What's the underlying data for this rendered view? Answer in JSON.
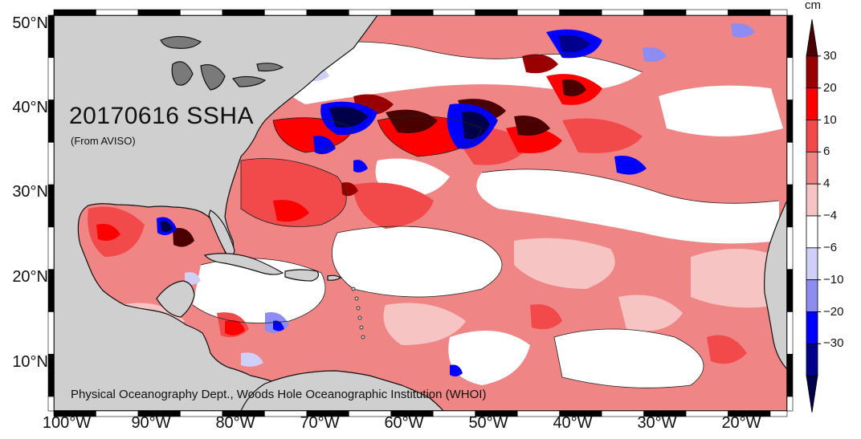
{
  "map": {
    "title": "20170616 SSHA",
    "subtitle": "(From AVISO)",
    "credit": "Physical Oceanography Dept., Woods Hole Oceanographic Institution (WHOI)",
    "lat_labels": [
      "50°N",
      "40°N",
      "30°N",
      "20°N",
      "10°N"
    ],
    "lon_labels": [
      "100°W",
      "90°W",
      "80°W",
      "70°W",
      "60°W",
      "50°W",
      "40°W",
      "30°W",
      "20°W"
    ],
    "land_color": "#cfcfcf",
    "coast_color": "#111111"
  },
  "colorbar": {
    "unit": "cm",
    "tick_labels": [
      "30",
      "20",
      "10",
      "6",
      "4",
      "-4",
      "-6",
      "-10",
      "-20",
      "-30"
    ],
    "colors_top_to_bottom": [
      "#4a0000",
      "#990000",
      "#ff0000",
      "#f24a4a",
      "#f08585",
      "#f7c4c4",
      "#ffffff",
      "#cfcff7",
      "#8c8cf2",
      "#0000ff",
      "#00008c",
      "#00004a"
    ]
  }
}
